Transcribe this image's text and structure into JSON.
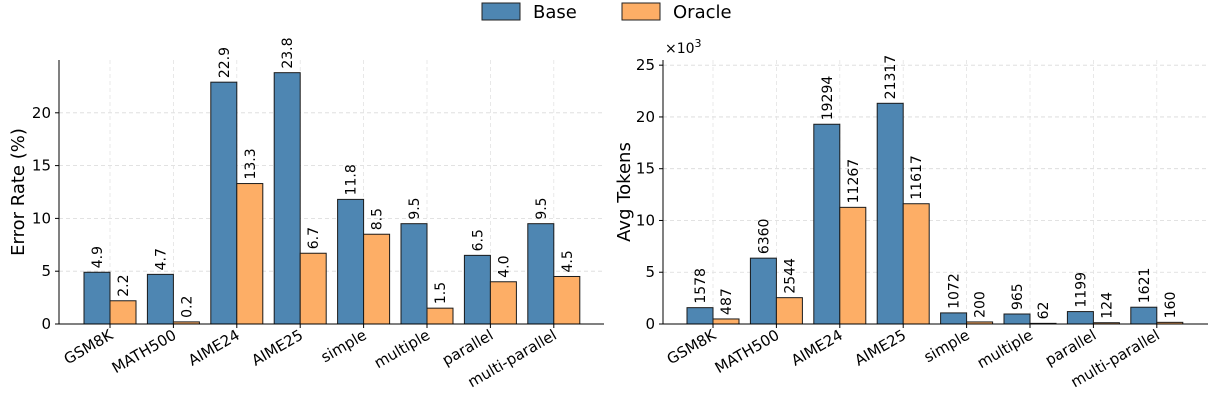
{
  "legend": {
    "items": [
      {
        "name": "Base",
        "color": "#4e86b2"
      },
      {
        "name": "Oracle",
        "color": "#fdae66"
      }
    ]
  },
  "chart_data": [
    {
      "type": "bar",
      "categories": [
        "GSM8K",
        "MATH500",
        "AIME24",
        "AIME25",
        "simple",
        "multiple",
        "parallel",
        "multi-parallel"
      ],
      "series": [
        {
          "name": "Base",
          "values": [
            4.9,
            4.7,
            22.9,
            23.8,
            11.8,
            9.5,
            6.5,
            9.5
          ],
          "labels": [
            "4.9",
            "4.7",
            "22.9",
            "23.8",
            "11.8",
            "9.5",
            "6.5",
            "9.5"
          ]
        },
        {
          "name": "Oracle",
          "values": [
            2.2,
            0.2,
            13.3,
            6.7,
            8.5,
            1.5,
            4.0,
            4.5
          ],
          "labels": [
            "2.2",
            "0.2",
            "13.3",
            "6.7",
            "8.5",
            "1.5",
            "4.0",
            "4.5"
          ]
        }
      ],
      "ylabel": "Error Rate (%)",
      "ylim": [
        0,
        25
      ],
      "yticks": [
        0,
        5,
        10,
        15,
        20
      ],
      "ytick_labels": [
        "0",
        "5",
        "10",
        "15",
        "20"
      ],
      "grid": true
    },
    {
      "type": "bar",
      "categories": [
        "GSM8K",
        "MATH500",
        "AIME24",
        "AIME25",
        "simple",
        "multiple",
        "parallel",
        "multi-parallel"
      ],
      "series": [
        {
          "name": "Base",
          "values": [
            1578,
            6360,
            19294,
            21317,
            1072,
            965,
            1199,
            1621
          ],
          "labels": [
            "1578",
            "6360",
            "19294",
            "21317",
            "1072",
            "965",
            "1199",
            "1621"
          ]
        },
        {
          "name": "Oracle",
          "values": [
            487,
            2544,
            11267,
            11617,
            200,
            62,
            124,
            160
          ],
          "labels": [
            "487",
            "2544",
            "11267",
            "11617",
            "200",
            "62",
            "124",
            "160"
          ]
        }
      ],
      "ylabel": "Avg Tokens",
      "ylim": [
        0,
        25500
      ],
      "yticks": [
        0,
        5000,
        10000,
        15000,
        20000,
        25000
      ],
      "ytick_labels": [
        "0",
        "5",
        "10",
        "15",
        "20",
        "25"
      ],
      "multiplier_base": "×10",
      "multiplier_exp": "3",
      "grid": true
    }
  ]
}
